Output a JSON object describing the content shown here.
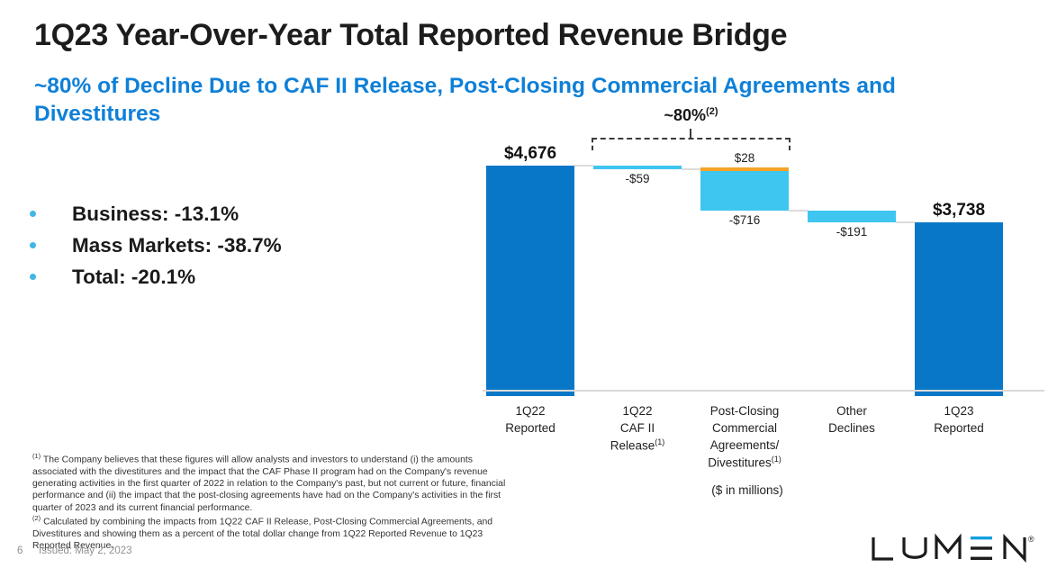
{
  "slide": {
    "title": "1Q23 Year-Over-Year Total Reported Revenue Bridge",
    "subtitle": "~80% of Decline Due to CAF II Release, Post-Closing Commercial Agreements and Divestitures",
    "bullets": [
      "Business: -13.1%",
      "Mass Markets: -38.7%",
      "Total: -20.1%"
    ],
    "units_note": "($ in millions)",
    "footnotes": [
      {
        "marker": "(1)",
        "text": "The Company believes that these figures will allow analysts and investors to understand (i) the amounts associated with the divestitures and the impact that the CAF Phase II program had on the Company's revenue generating activities in the first quarter of 2022 in relation to the Company's past, but not current or future, financial performance and (ii) the impact that the post-closing agreements have had on the Company's activities in the first quarter of 2023 and its current financial performance."
      },
      {
        "marker": "(2)",
        "text": "Calculated by combining the impacts from 1Q22 CAF II Release, Post-Closing Commercial Agreements, and Divestitures and showing them as a percent of the total dollar change from 1Q22 Reported Revenue to 1Q23 Reported Revenue."
      }
    ],
    "page_number": "6",
    "issued": "Issued: May 2, 2023",
    "logo_text": "LUMEN",
    "logo_registered_mark": "®"
  },
  "colors": {
    "bar_dark_blue": "#0877c8",
    "bar_light_blue": "#3ec6f1",
    "bar_orange": "#f5a326",
    "subtitle_blue": "#0e80d8",
    "bullet_dot_blue": "#41b6e8",
    "connector_gray": "#dcdcdc",
    "axis_gray": "#d9d9d9",
    "logo_accent_blue": "#12a0de"
  },
  "chart_data": {
    "type": "waterfall",
    "units_note": "($ in millions)",
    "categories": [
      {
        "lines": [
          {
            "t": "1Q22"
          },
          {
            "t": "Reported"
          }
        ]
      },
      {
        "lines": [
          {
            "t": "1Q22"
          },
          {
            "t": "CAF II"
          },
          {
            "t": "Release",
            "sup": "(1)"
          }
        ]
      },
      {
        "lines": [
          {
            "t": "Post-Closing"
          },
          {
            "t": "Commercial"
          },
          {
            "t": "Agreements/"
          },
          {
            "t": "Divestitures",
            "sup": "(1)"
          }
        ]
      },
      {
        "lines": [
          {
            "t": "Other"
          },
          {
            "t": "Declines"
          }
        ]
      },
      {
        "lines": [
          {
            "t": "1Q23"
          },
          {
            "t": "Reported"
          }
        ]
      }
    ],
    "bars": [
      {
        "kind": "total",
        "value": 4676,
        "label": "$4,676"
      },
      {
        "kind": "delta",
        "segments": [
          {
            "value": -59,
            "label": "-$59",
            "color_key": "bar_light_blue",
            "label_pos": "below"
          }
        ]
      },
      {
        "kind": "delta",
        "segments": [
          {
            "value": 28,
            "label": "$28",
            "color_key": "bar_orange",
            "label_pos": "above"
          },
          {
            "value": -716,
            "label": "-$716",
            "color_key": "bar_light_blue",
            "label_pos": "below"
          }
        ]
      },
      {
        "kind": "delta",
        "segments": [
          {
            "value": -191,
            "label": "-$191",
            "color_key": "bar_light_blue",
            "label_pos": "below"
          }
        ]
      },
      {
        "kind": "total",
        "value": 3738,
        "label": "$3,738"
      }
    ],
    "bracket": {
      "label": "~80%",
      "superscript": "(2)",
      "from_bar": 1,
      "to_bar": 2
    }
  }
}
